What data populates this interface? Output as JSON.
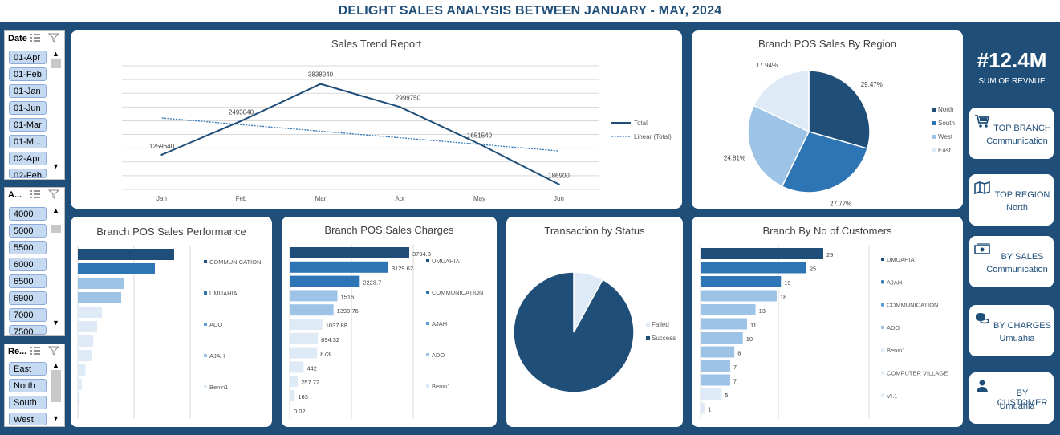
{
  "header": {
    "title": "DELIGHT SALES ANALYSIS BETWEEN JANUARY - MAY, 2024"
  },
  "slicers": {
    "date": {
      "label": "Date",
      "items": [
        "01-Apr",
        "01-Feb",
        "01-Jan",
        "01-Jun",
        "01-Mar",
        "01-M...",
        "02-Apr",
        "02-Feb"
      ]
    },
    "amount": {
      "label": "A...",
      "items": [
        "4000",
        "5000",
        "5500",
        "6000",
        "6500",
        "6900",
        "7000",
        "7500"
      ]
    },
    "region": {
      "label": "Re...",
      "items": [
        "East",
        "North",
        "South",
        "West"
      ]
    }
  },
  "kpi": {
    "total": "#12.4M",
    "total_label": "SUM OF REVNUE",
    "cards": [
      {
        "label": "TOP BRANCH",
        "value": "Communication",
        "icon": "cart-icon"
      },
      {
        "label": "TOP REGION",
        "value": "North",
        "icon": "map-icon"
      },
      {
        "label": "BY SALES",
        "value": "Communication",
        "icon": "cash-icon"
      },
      {
        "label": "BY CHARGES",
        "value": "Umuahia",
        "icon": "coins-icon"
      },
      {
        "label": "BY CUSTOMER",
        "value": "Umuahia",
        "icon": "person-icon"
      }
    ]
  },
  "colors": {
    "navy": "#1f4e79",
    "blue": "#2e75b6",
    "mid": "#5b9bd5",
    "light": "#9dc3e6",
    "pale": "#deebf7",
    "background": "#1f4e79"
  },
  "chart_data": [
    {
      "id": "sales-trend",
      "type": "line",
      "title": "Sales Trend Report",
      "categories": [
        "Jan",
        "Feb",
        "Mar",
        "Apr",
        "May",
        "Jun"
      ],
      "series": [
        {
          "name": "Total",
          "values": [
            1259640,
            2493040,
            3838940,
            2999750,
            1651540,
            186900
          ]
        }
      ],
      "trendline": {
        "name": "Linear (Total)",
        "values": [
          2600000,
          2360000,
          2120000,
          1880000,
          1640000,
          1400000
        ]
      },
      "ylim": [
        0,
        4500000
      ],
      "grid": true,
      "legend": "right"
    },
    {
      "id": "region-pie",
      "type": "pie",
      "title": "Branch POS Sales By Region",
      "labels": [
        "North",
        "South",
        "West",
        "East"
      ],
      "values": [
        29.47,
        27.77,
        24.81,
        17.94
      ],
      "value_labels": [
        "29.47%",
        "27.77%",
        "24.81%",
        "17.94%"
      ],
      "legend": "right"
    },
    {
      "id": "sales-performance",
      "type": "bar",
      "title": "Branch POS Sales Performance",
      "orientation": "horizontal",
      "values": [
        100,
        80,
        48,
        45,
        25,
        20,
        16,
        15,
        8,
        4,
        2
      ],
      "legend": [
        "COMMUNICATION",
        "UMUAHIA",
        "ADO",
        "AJAH",
        "Benin1"
      ],
      "grid": true
    },
    {
      "id": "sales-charges",
      "type": "bar",
      "title": "Branch POS Sales Charges",
      "orientation": "horizontal",
      "values": [
        3794.8,
        3129.62,
        2223.7,
        1516,
        1390.76,
        1037.88,
        894.32,
        873,
        442,
        257.72,
        163,
        0.02
      ],
      "value_labels": [
        "3794.8",
        "3129.62",
        "2223.7",
        "1516",
        "1390.76",
        "1037.88",
        "894.32",
        "873",
        "442",
        "257.72",
        "163",
        "0.02"
      ],
      "legend": [
        "UMUAHIA",
        "COMMUNICATION",
        "AJAH",
        "ADO",
        "Benin1"
      ],
      "grid": true
    },
    {
      "id": "transaction-status",
      "type": "pie",
      "title": "Transaction by Status",
      "labels": [
        "Failed",
        "Success"
      ],
      "values": [
        8,
        92
      ],
      "legend": "right"
    },
    {
      "id": "customers",
      "type": "bar",
      "title": "Branch By No of Customers",
      "orientation": "horizontal",
      "values": [
        29,
        25,
        19,
        18,
        13,
        11,
        10,
        8,
        7,
        7,
        5,
        1
      ],
      "value_labels": [
        "29",
        "25",
        "19",
        "18",
        "13",
        "11",
        "10",
        "8",
        "7",
        "7",
        "5",
        "1"
      ],
      "legend": [
        "UMUAHIA",
        "AJAH",
        "COMMUNICATION",
        "ADO",
        "Benin1",
        "COMPUTER VILLAGE",
        "VI.1"
      ],
      "grid": true
    }
  ]
}
